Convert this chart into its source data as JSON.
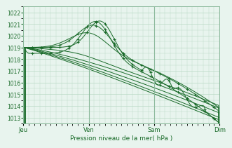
{
  "bg_color": "#e8f4ee",
  "plot_bg_color": "#e8f4ee",
  "grid_color": "#b8d8c4",
  "line_color": "#1a6b2a",
  "marker_color": "#1a6b2a",
  "ylim": [
    1012.5,
    1022.5
  ],
  "yticks": [
    1013,
    1014,
    1015,
    1016,
    1017,
    1018,
    1019,
    1020,
    1021,
    1022
  ],
  "xlabel": "Pression niveau de la mer( hPa )",
  "day_labels": [
    "Jeu",
    "Ven",
    "Sam",
    "Dim"
  ],
  "day_positions": [
    0,
    72,
    144,
    216
  ],
  "total_points": 217
}
